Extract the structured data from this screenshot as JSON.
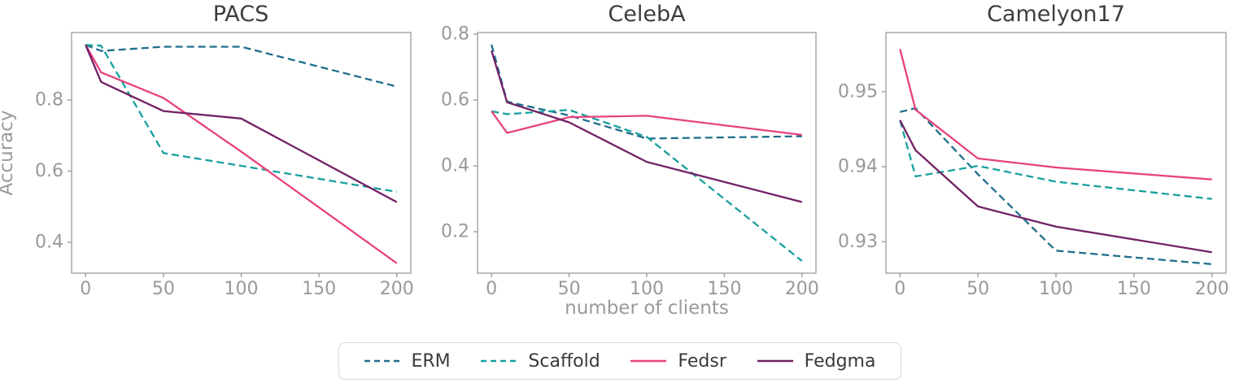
{
  "figure": {
    "background": "#ffffff",
    "xlabel": "number of clients",
    "ylabel": "Accuracy",
    "spine_color": "#9b9b9b",
    "tick_color": "#9b9b9b",
    "tick_label_color": "#999999",
    "title_color": "#3d3d3d"
  },
  "legend": {
    "position": "bottom center",
    "entries": [
      {
        "label": "ERM",
        "color": "#1f6e8c",
        "dashed": true
      },
      {
        "label": "Scaffold",
        "color": "#17a09d",
        "dashed": true
      },
      {
        "label": "Fedsr",
        "color": "#e8427c",
        "dashed": false
      },
      {
        "label": "Fedgma",
        "color": "#722165",
        "dashed": false
      }
    ]
  },
  "chart_data": [
    {
      "type": "line",
      "title": "PACS",
      "xlabel": "",
      "ylabel": "Accuracy",
      "x": [
        0,
        10,
        50,
        100,
        200
      ],
      "series": [
        {
          "name": "ERM",
          "color": "#1f6e8c",
          "dashed": true,
          "values": [
            0.955,
            0.938,
            0.95,
            0.95,
            0.838
          ]
        },
        {
          "name": "Scaffold",
          "color": "#17a09d",
          "dashed": true,
          "values": [
            0.955,
            0.953,
            0.651,
            0.615,
            0.542
          ]
        },
        {
          "name": "Fedsr",
          "color": "#e8427c",
          "dashed": false,
          "values": [
            0.955,
            0.878,
            0.806,
            0.655,
            0.341
          ]
        },
        {
          "name": "Fedgma",
          "color": "#722165",
          "dashed": false,
          "values": [
            0.955,
            0.851,
            0.769,
            0.748,
            0.513
          ]
        }
      ],
      "xlim": [
        -9,
        209
      ],
      "ylim": [
        0.313,
        0.99
      ],
      "xticks": {
        "values": [
          0,
          50,
          100,
          150,
          200
        ],
        "labels": [
          "0",
          "50",
          "100",
          "150",
          "200"
        ]
      },
      "yticks": {
        "values": [
          0.4,
          0.6,
          0.8
        ],
        "labels": [
          "0.4",
          "0.6",
          "0.8"
        ]
      },
      "grid": false
    },
    {
      "type": "line",
      "title": "CelebA",
      "xlabel": "number of clients",
      "ylabel": "",
      "x": [
        0,
        10,
        50,
        100,
        200
      ],
      "series": [
        {
          "name": "ERM",
          "color": "#1f6e8c",
          "dashed": true,
          "values": [
            0.768,
            0.595,
            0.553,
            0.483,
            0.49
          ]
        },
        {
          "name": "Scaffold",
          "color": "#17a09d",
          "dashed": true,
          "values": [
            0.566,
            0.557,
            0.57,
            0.488,
            0.111
          ]
        },
        {
          "name": "Fedsr",
          "color": "#e8427c",
          "dashed": false,
          "values": [
            0.566,
            0.5,
            0.548,
            0.552,
            0.494
          ]
        },
        {
          "name": "Fedgma",
          "color": "#722165",
          "dashed": false,
          "values": [
            0.75,
            0.593,
            0.532,
            0.412,
            0.29
          ]
        }
      ],
      "xlim": [
        -9,
        209
      ],
      "ylim": [
        0.074,
        0.805
      ],
      "xticks": {
        "values": [
          0,
          50,
          100,
          150,
          200
        ],
        "labels": [
          "0",
          "50",
          "100",
          "150",
          "200"
        ]
      },
      "yticks": {
        "values": [
          0.2,
          0.4,
          0.6,
          0.8
        ],
        "labels": [
          "0.2",
          "0.4",
          "0.6",
          "0.8"
        ]
      },
      "grid": false
    },
    {
      "type": "line",
      "title": "Camelyon17",
      "xlabel": "",
      "ylabel": "",
      "x": [
        0,
        10,
        50,
        100,
        200
      ],
      "series": [
        {
          "name": "ERM",
          "color": "#1f6e8c",
          "dashed": true,
          "values": [
            0.9473,
            0.9478,
            0.939,
            0.9288,
            0.927
          ]
        },
        {
          "name": "Scaffold",
          "color": "#17a09d",
          "dashed": true,
          "values": [
            0.9462,
            0.9387,
            0.9401,
            0.938,
            0.9357
          ]
        },
        {
          "name": "Fedsr",
          "color": "#e8427c",
          "dashed": false,
          "values": [
            0.9557,
            0.9476,
            0.9411,
            0.9399,
            0.9383
          ]
        },
        {
          "name": "Fedgma",
          "color": "#722165",
          "dashed": false,
          "values": [
            0.9462,
            0.9422,
            0.9347,
            0.932,
            0.9286
          ]
        }
      ],
      "xlim": [
        -9,
        209
      ],
      "ylim": [
        0.9258,
        0.9579
      ],
      "xticks": {
        "values": [
          0,
          50,
          100,
          150,
          200
        ],
        "labels": [
          "0",
          "50",
          "100",
          "150",
          "200"
        ]
      },
      "yticks": {
        "values": [
          0.93,
          0.94,
          0.95
        ],
        "labels": [
          "0.93",
          "0.94",
          "0.95"
        ]
      },
      "grid": false
    }
  ]
}
